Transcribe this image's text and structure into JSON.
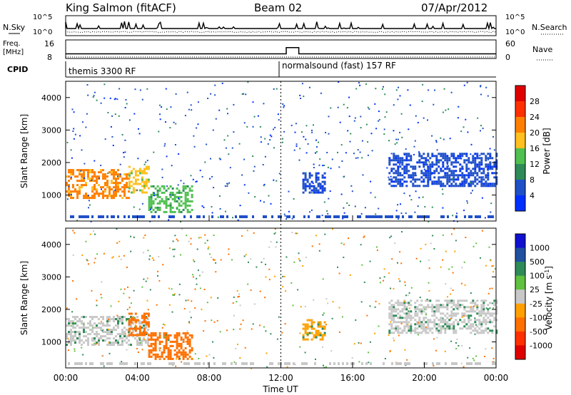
{
  "header": {
    "station": "King Salmon (fitACF)",
    "beam": "Beam 02",
    "date": "07/Apr/2012"
  },
  "noise_panel": {
    "left_label": "N.Sky",
    "right_label": "N.Search",
    "tick_top": "10^5",
    "tick_bottom": "10^0"
  },
  "freq_panel": {
    "left_label_1": "Freq.",
    "left_label_2": "[MHz]",
    "right_label": "Nave",
    "left_ticks": [
      "16",
      "8"
    ],
    "right_ticks": [
      "60",
      "0"
    ]
  },
  "cpid": {
    "label": "CPID",
    "segments": [
      {
        "text": "themis 3300 RF",
        "start_hour": 0
      },
      {
        "text": "normalsound (fast) 157 RF",
        "start_hour": 12
      }
    ]
  },
  "power_panel": {
    "ylabel": "Slant Range [km]",
    "cbar_label": "Power [dB]",
    "cbar_ticks": [
      "28",
      "24",
      "20",
      "16",
      "12",
      "8",
      "4"
    ]
  },
  "velocity_panel": {
    "ylabel": "Slant Range [km]",
    "cbar_label": "Velocity [m s",
    "cbar_unit_sup": "-1",
    "cbar_unit_close": "]",
    "cbar_ticks": [
      "1000",
      "500",
      "100",
      "25",
      "-25",
      "-100",
      "-500",
      "-1000"
    ]
  },
  "x_axis": {
    "label": "Time UT",
    "ticks": [
      "00:00",
      "04:00",
      "08:00",
      "12:00",
      "16:00",
      "20:00",
      "00:00"
    ]
  },
  "y_ticks": [
    "4000",
    "3000",
    "2000",
    "1000"
  ],
  "colors": {
    "power_scale": [
      "#0030ff",
      "#2050c8",
      "#2e8b57",
      "#50c050",
      "#ffc020",
      "#ff8000",
      "#ff3000",
      "#e00000"
    ],
    "velocity_scale": [
      "#1010d0",
      "#2050a0",
      "#2e8b57",
      "#60c040",
      "#c8c8c8",
      "#ffa000",
      "#ff7000",
      "#ff3000",
      "#e00000"
    ]
  },
  "chart_data": {
    "type": "heatmap",
    "x_unit": "hour UT",
    "xlim": [
      0,
      24
    ],
    "ylim": [
      200,
      4500
    ],
    "power_echo_regions": [
      {
        "t0": 0.0,
        "t1": 3.5,
        "r0": 900,
        "r1": 1800,
        "level": 24
      },
      {
        "t0": 3.5,
        "t1": 4.6,
        "r0": 1100,
        "r1": 1900,
        "level": 20
      },
      {
        "t0": 4.6,
        "t1": 7.0,
        "r0": 500,
        "r1": 1300,
        "level": 16
      },
      {
        "t0": 13.2,
        "t1": 14.5,
        "r0": 1100,
        "r1": 1700,
        "level": 8
      },
      {
        "t0": 18.0,
        "t1": 24.0,
        "r0": 1300,
        "r1": 2300,
        "level": 8
      }
    ],
    "velocity_echo_regions": [
      {
        "t0": 0.0,
        "t1": 4.6,
        "r0": 900,
        "r1": 1800,
        "value": 0
      },
      {
        "t0": 3.5,
        "t1": 4.6,
        "r0": 1200,
        "r1": 1900,
        "value": -500
      },
      {
        "t0": 4.6,
        "t1": 7.0,
        "r0": 500,
        "r1": 1300,
        "value": -500
      },
      {
        "t0": 13.2,
        "t1": 14.5,
        "r0": 1100,
        "r1": 1700,
        "value": -100
      },
      {
        "t0": 18.0,
        "t1": 24.0,
        "r0": 1300,
        "r1": 2300,
        "value": 0
      }
    ],
    "freq_mhz": {
      "base": 10.6,
      "high": 15.6,
      "high_t0": 12.3,
      "high_t1": 13.0
    }
  }
}
